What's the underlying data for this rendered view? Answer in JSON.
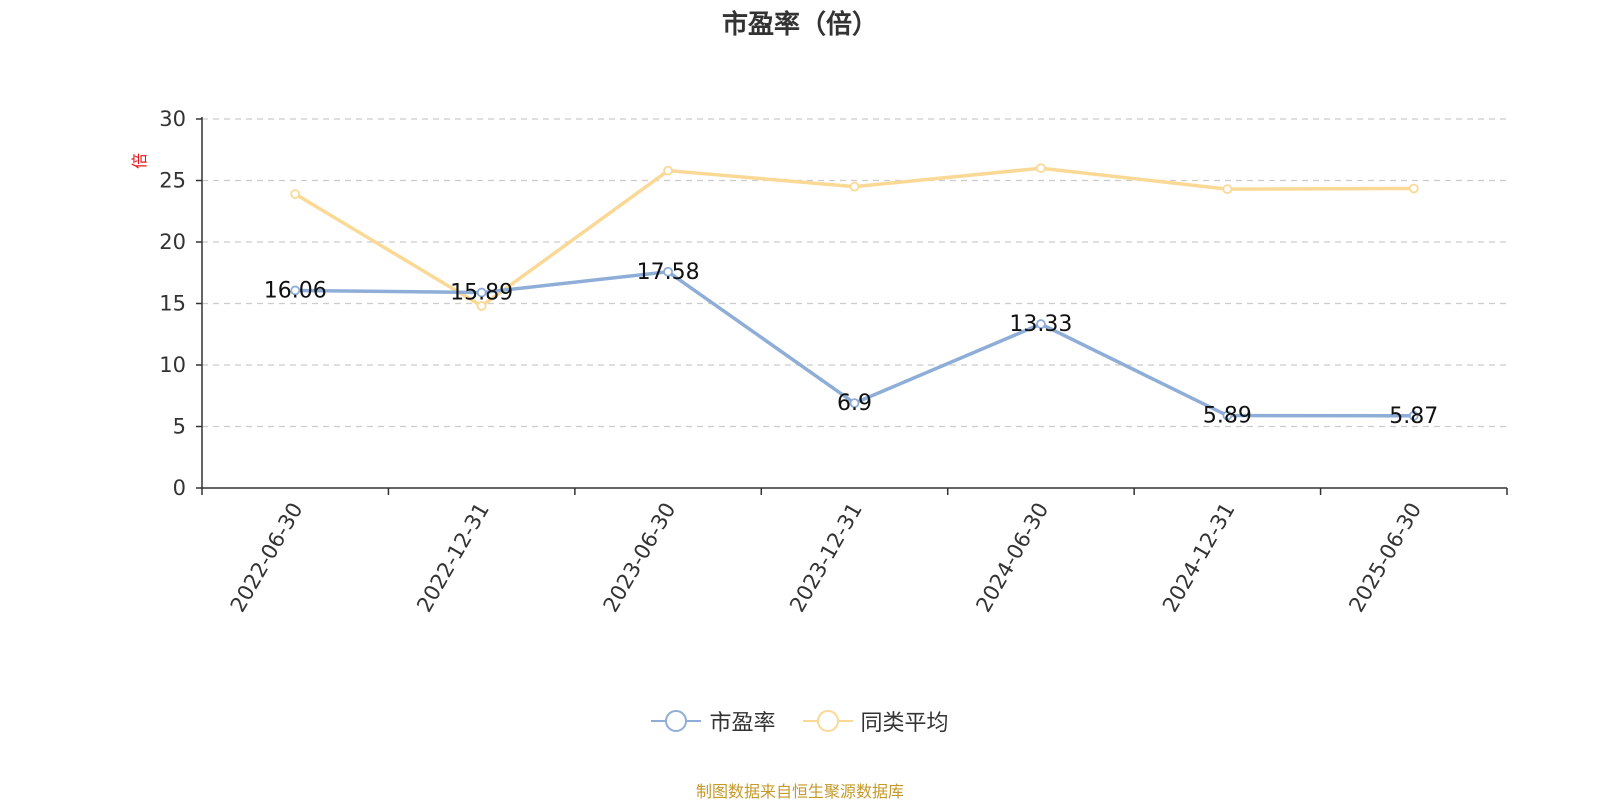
{
  "chart_data": {
    "type": "line",
    "title": "市盈率（倍）",
    "unit_label": "倍",
    "categories": [
      "2022-06-30",
      "2022-12-31",
      "2023-06-30",
      "2023-12-31",
      "2024-06-30",
      "2024-12-31",
      "2025-06-30"
    ],
    "ylim": [
      0,
      30
    ],
    "yticks": [
      0,
      5,
      10,
      15,
      20,
      25,
      30
    ],
    "grid": true,
    "legend_position": "bottom-center",
    "series": [
      {
        "name": "市盈率",
        "color": "#8eaed8",
        "values": [
          16.06,
          15.89,
          17.58,
          6.9,
          13.33,
          5.89,
          5.87
        ],
        "labels": [
          "16.06",
          "15.89",
          "17.58",
          "6.9",
          "13.33",
          "5.89",
          "5.87"
        ]
      },
      {
        "name": "同类平均",
        "color": "#fad996",
        "values": [
          23.9,
          14.8,
          25.8,
          24.5,
          26.0,
          24.3,
          24.35
        ]
      }
    ]
  },
  "source_note": "制图数据来自恒生聚源数据库"
}
